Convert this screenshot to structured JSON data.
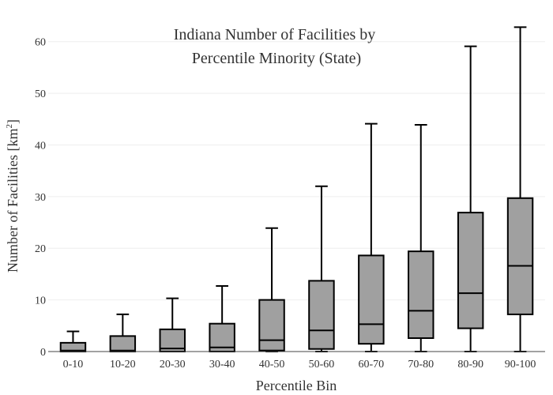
{
  "chart_data": {
    "type": "box",
    "title_lines": [
      "Indiana Number of Facilities by",
      "Percentile Minority (State)"
    ],
    "xlabel": "Percentile Bin",
    "ylabel_main": "Number of Facilities  [km",
    "ylabel_sup": "2",
    "ylabel_end": "]",
    "ylim": [
      0,
      65
    ],
    "yticks": [
      0,
      10,
      20,
      30,
      40,
      50,
      60
    ],
    "grid": true,
    "box_color": "#a0a0a0",
    "categories": [
      "0-10",
      "10-20",
      "20-30",
      "30-40",
      "40-50",
      "50-60",
      "60-70",
      "70-80",
      "80-90",
      "90-100"
    ],
    "boxes": [
      {
        "min": 0,
        "q1": 0,
        "median": 0.2,
        "q3": 1.7,
        "max": 3.9
      },
      {
        "min": 0,
        "q1": 0,
        "median": 0.2,
        "q3": 3.0,
        "max": 7.2
      },
      {
        "min": 0,
        "q1": 0,
        "median": 0.6,
        "q3": 4.3,
        "max": 10.3
      },
      {
        "min": 0,
        "q1": 0,
        "median": 0.8,
        "q3": 5.4,
        "max": 12.7
      },
      {
        "min": 0,
        "q1": 0.2,
        "median": 2.2,
        "q3": 10.0,
        "max": 23.9
      },
      {
        "min": 0,
        "q1": 0.5,
        "median": 4.1,
        "q3": 13.7,
        "max": 32.0
      },
      {
        "min": 0,
        "q1": 1.5,
        "median": 5.3,
        "q3": 18.6,
        "max": 44.1
      },
      {
        "min": 0,
        "q1": 2.6,
        "median": 7.9,
        "q3": 19.4,
        "max": 43.9
      },
      {
        "min": 0,
        "q1": 4.5,
        "median": 11.3,
        "q3": 26.9,
        "max": 59.1
      },
      {
        "min": 0,
        "q1": 7.2,
        "median": 16.6,
        "q3": 29.7,
        "max": 62.8
      }
    ]
  }
}
